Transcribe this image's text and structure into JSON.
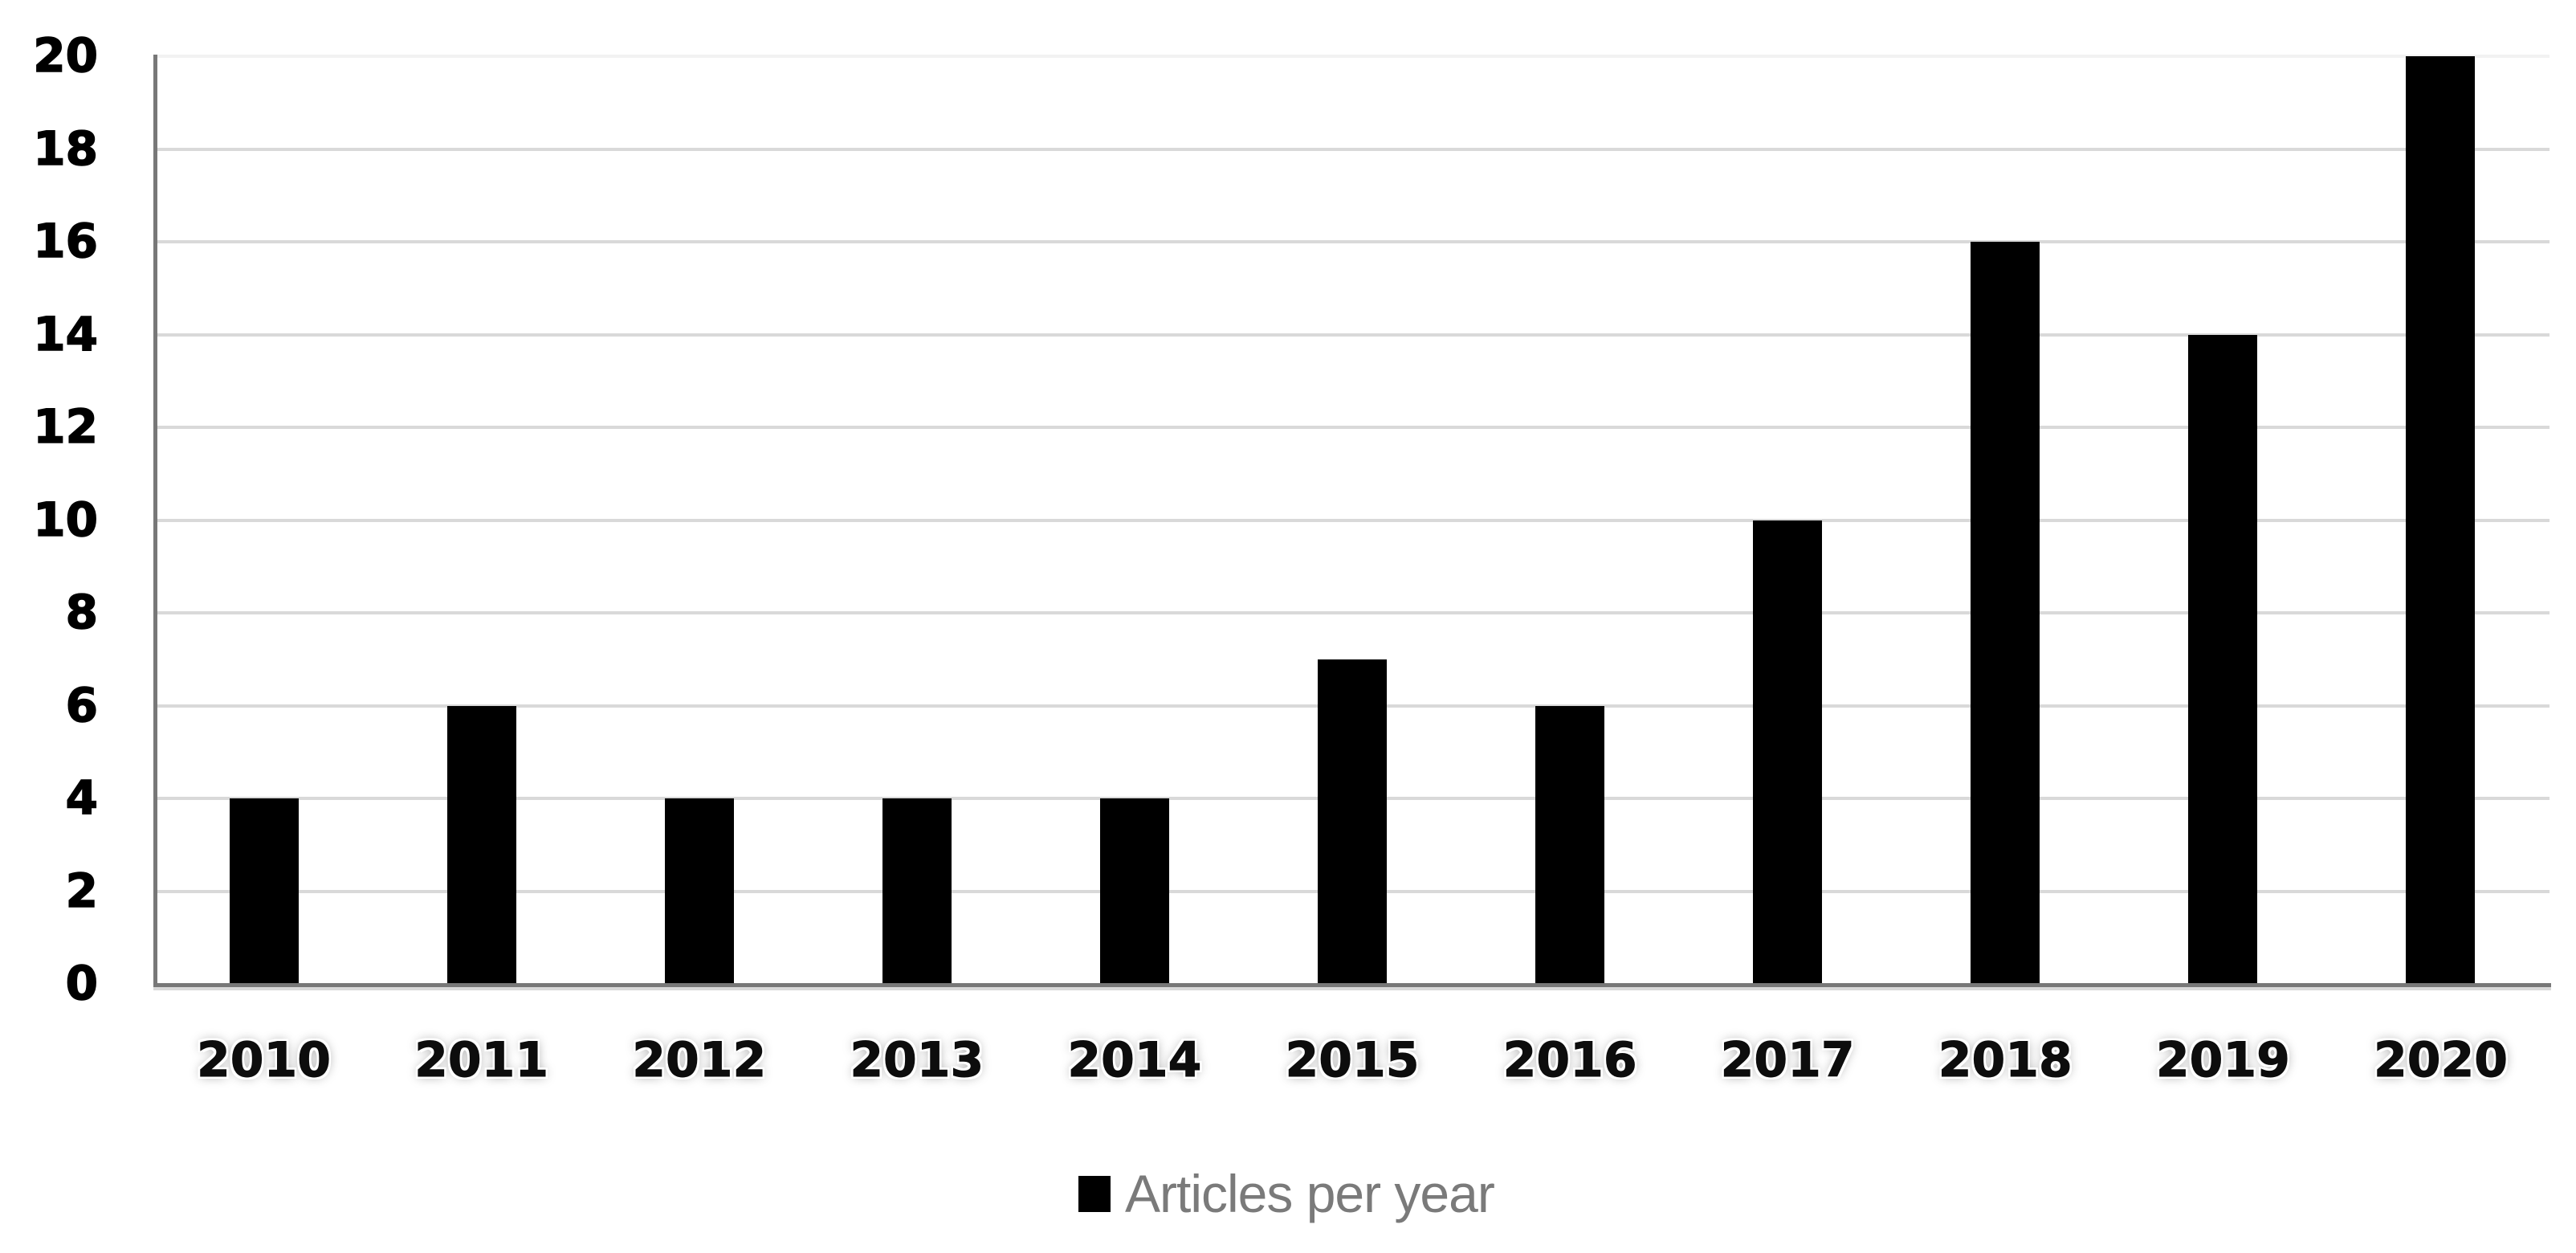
{
  "chart_data": {
    "type": "bar",
    "title": "",
    "categories": [
      "2010",
      "2011",
      "2012",
      "2013",
      "2014",
      "2015",
      "2016",
      "2017",
      "2018",
      "2019",
      "2020"
    ],
    "series": [
      {
        "name": "Articles per year",
        "values": [
          4,
          6,
          4,
          4,
          4,
          7,
          6,
          10,
          16,
          14,
          20
        ]
      }
    ],
    "xlabel": "",
    "ylabel": "",
    "ylim": [
      0,
      20
    ],
    "yticks": [
      0,
      2,
      4,
      6,
      8,
      10,
      12,
      14,
      16,
      18,
      20
    ],
    "grid": "horizontal",
    "legend_position": "bottom-center",
    "colors": {
      "bar": "#000000",
      "gridline": "#d9d9d9",
      "gridline_top": "#f2f2f2",
      "axis": "#787878",
      "tick_label": "#000000",
      "legend_text": "#7a7a7a",
      "background": "#ffffff"
    }
  }
}
